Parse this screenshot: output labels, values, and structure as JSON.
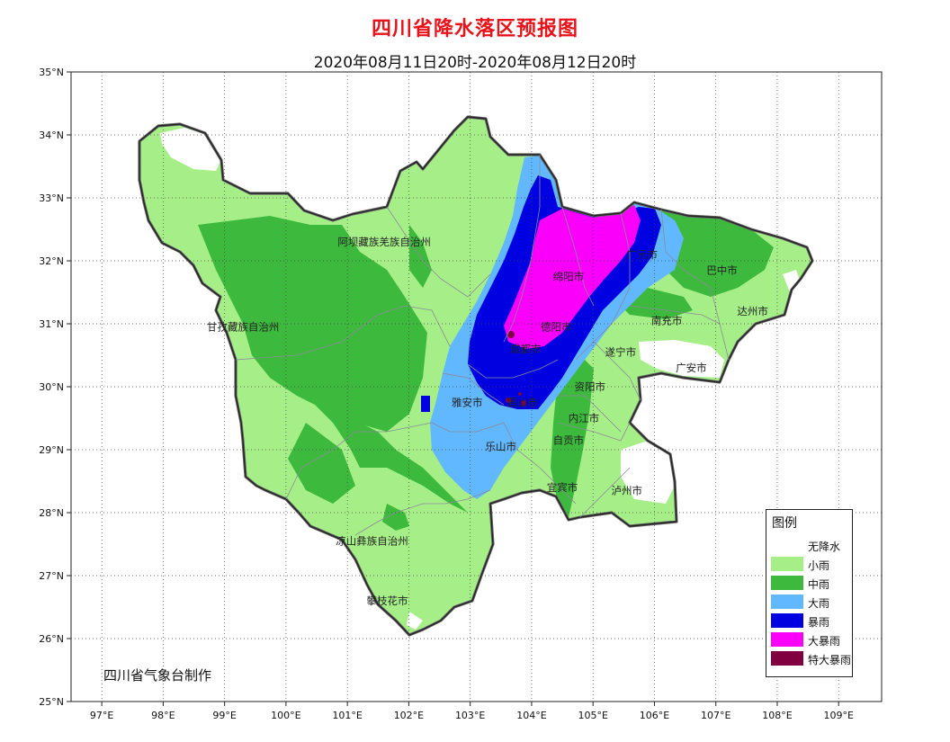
{
  "title": "四川省降水落区预报图",
  "subtitle": "2020年08月11日20时-2020年08月12日20时",
  "credit": "四川省气象台制作",
  "lat_labels": [
    "35°N",
    "34°N",
    "33°N",
    "32°N",
    "31°N",
    "30°N",
    "29°N",
    "28°N",
    "27°N",
    "26°N",
    "25°N"
  ],
  "lon_labels": [
    "97°E",
    "98°E",
    "99°E",
    "100°E",
    "101°E",
    "102°E",
    "103°E",
    "104°E",
    "105°E",
    "106°E",
    "107°E",
    "108°E",
    "109°E"
  ],
  "cities": [
    {
      "name": "阿坝藏族羌族自治州",
      "lon": 101.6,
      "lat": 32.3
    },
    {
      "name": "甘孜藏族自治州",
      "lon": 99.3,
      "lat": 30.95
    },
    {
      "name": "绵阳市",
      "lon": 104.6,
      "lat": 31.75
    },
    {
      "name": "广元市",
      "lon": 105.8,
      "lat": 32.1
    },
    {
      "name": "巴中市",
      "lon": 107.1,
      "lat": 31.85
    },
    {
      "name": "达州市",
      "lon": 107.6,
      "lat": 31.2
    },
    {
      "name": "南充市",
      "lon": 106.2,
      "lat": 31.05
    },
    {
      "name": "德阳市",
      "lon": 104.4,
      "lat": 30.95
    },
    {
      "name": "成都市",
      "lon": 103.9,
      "lat": 30.6
    },
    {
      "name": "遂宁市",
      "lon": 105.45,
      "lat": 30.55
    },
    {
      "name": "广安市",
      "lon": 106.6,
      "lat": 30.3
    },
    {
      "name": "资阳市",
      "lon": 104.95,
      "lat": 30.0
    },
    {
      "name": "雅安市",
      "lon": 102.95,
      "lat": 29.75
    },
    {
      "name": "眉山市",
      "lon": 103.85,
      "lat": 29.75
    },
    {
      "name": "内江市",
      "lon": 104.85,
      "lat": 29.5
    },
    {
      "name": "自贡市",
      "lon": 104.6,
      "lat": 29.15
    },
    {
      "name": "乐山市",
      "lon": 103.5,
      "lat": 29.05
    },
    {
      "name": "宜宾市",
      "lon": 104.5,
      "lat": 28.4
    },
    {
      "name": "泸州市",
      "lon": 105.55,
      "lat": 28.35
    },
    {
      "name": "凉山彝族自治州",
      "lon": 101.4,
      "lat": 27.55
    },
    {
      "name": "攀枝花市",
      "lon": 101.65,
      "lat": 26.6
    }
  ],
  "legend": {
    "title": "图例",
    "items": [
      {
        "label": "无降水",
        "color": "#ffffff"
      },
      {
        "label": "小雨",
        "color": "#a6ef88"
      },
      {
        "label": "中雨",
        "color": "#3dba3d"
      },
      {
        "label": "大雨",
        "color": "#61b8ff"
      },
      {
        "label": "暴雨",
        "color": "#0000e1"
      },
      {
        "label": "大暴雨",
        "color": "#fa00fa"
      },
      {
        "label": "特大暴雨",
        "color": "#800040"
      }
    ]
  }
}
